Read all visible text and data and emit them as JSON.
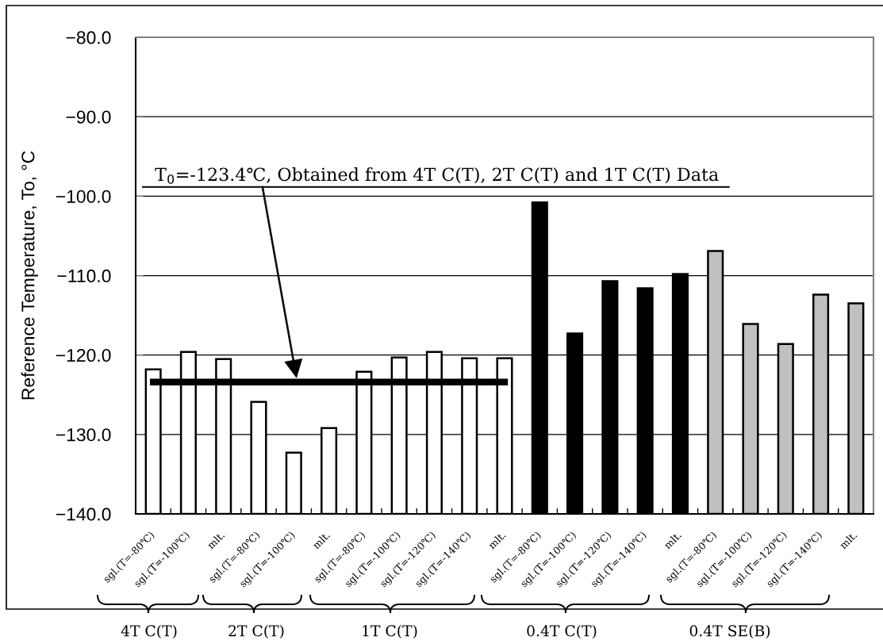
{
  "chart_data": {
    "type": "bar",
    "ylabel": "Reference Temperature, To, °C",
    "categories": [
      "sgl.(T=-80℃)",
      "sgl.(T=-100℃)",
      "mlt.",
      "sgl.(T=-80℃)",
      "sgl.(T=-100℃)",
      "mlt.",
      "sgl.(T=-80℃)",
      "sgl.(T=-100℃)",
      "sgl.(T=-120℃)",
      "sgl.(T=-140℃)",
      "mlt.",
      "sgl.(T=-80℃)",
      "sgl.(T=-100℃)",
      "sgl.(T=-120℃)",
      "sgl.(T=-140℃)",
      "mlt.",
      "sgl.(T=-80℃)",
      "sgl.(T=-100℃)",
      "sgl.(T=-120℃)",
      "sgl.(T=-140℃)",
      "mlt."
    ],
    "series": [
      {
        "colors": [
          "#ffffff",
          "#ffffff",
          "#ffffff",
          "#ffffff",
          "#ffffff",
          "#ffffff",
          "#ffffff",
          "#ffffff",
          "#ffffff",
          "#ffffff",
          "#ffffff",
          "#000000",
          "#000000",
          "#000000",
          "#000000",
          "#000000",
          "#c0c0c0",
          "#c0c0c0",
          "#c0c0c0",
          "#c0c0c0",
          "#c0c0c0"
        ],
        "base": [
          -140,
          -140,
          -140,
          -140,
          -140,
          -140,
          -140,
          -140,
          -140,
          -140,
          -140,
          -140,
          -140,
          -140,
          -140,
          -140,
          -140,
          -140,
          -140,
          -140,
          -140
        ],
        "values": [
          18.2,
          20.4,
          19.5,
          14.1,
          7.7,
          10.8,
          17.9,
          19.7,
          20.4,
          19.6,
          19.6,
          39.2,
          22.7,
          29.3,
          28.4,
          30.2,
          33.1,
          23.9,
          21.4,
          27.6,
          26.5
        ]
      },
      {
        "type": "line",
        "color": "#000000",
        "values": [
          -123.4,
          -123.4,
          -123.4,
          -123.4,
          -123.4,
          -123.4,
          -123.4,
          -123.4,
          -123.4,
          -123.4,
          -123.4,
          null,
          null,
          null,
          null,
          null,
          null,
          null,
          null,
          null,
          null
        ]
      }
    ],
    "ylim": [
      -140,
      -80
    ],
    "yticks": [
      {
        "value": -140,
        "label": "−140.0"
      },
      {
        "value": -130,
        "label": "−130.0"
      },
      {
        "value": -120,
        "label": "−120.0"
      },
      {
        "value": -110,
        "label": "−110.0"
      },
      {
        "value": -100,
        "label": "−100.0"
      },
      {
        "value": -90,
        "label": "−90.0"
      },
      {
        "value": -80,
        "label": "−80.0"
      }
    ],
    "grid": "y",
    "annotations": [
      "T$_{0}$=-123.4℃, Obtained from 4T C(T), 2T C(T) and 1T C(T) Data",
      "4T C(T)",
      "2T C(T)",
      "1T C(T)",
      "0.4T C(T)",
      "0.4T SE(B)"
    ]
  }
}
